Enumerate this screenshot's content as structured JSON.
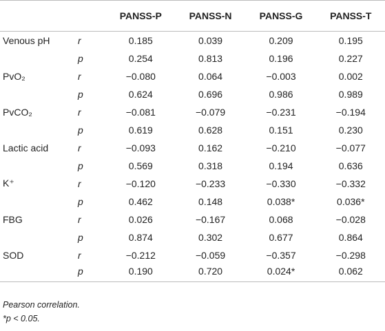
{
  "table": {
    "columns": [
      "PANSS-P",
      "PANSS-N",
      "PANSS-G",
      "PANSS-T"
    ],
    "groups": [
      {
        "label": "Venous pH",
        "rows": [
          {
            "stat": "r",
            "values": [
              "0.185",
              "0.039",
              "0.209",
              "0.195"
            ]
          },
          {
            "stat": "p",
            "values": [
              "0.254",
              "0.813",
              "0.196",
              "0.227"
            ]
          }
        ]
      },
      {
        "label": "PvO₂",
        "rows": [
          {
            "stat": "r",
            "values": [
              "−0.080",
              "0.064",
              "−0.003",
              "0.002"
            ]
          },
          {
            "stat": "p",
            "values": [
              "0.624",
              "0.696",
              "0.986",
              "0.989"
            ]
          }
        ]
      },
      {
        "label": "PvCO₂",
        "rows": [
          {
            "stat": "r",
            "values": [
              "−0.081",
              "−0.079",
              "−0.231",
              "−0.194"
            ]
          },
          {
            "stat": "p",
            "values": [
              "0.619",
              "0.628",
              "0.151",
              "0.230"
            ]
          }
        ]
      },
      {
        "label": "Lactic acid",
        "rows": [
          {
            "stat": "r",
            "values": [
              "−0.093",
              "0.162",
              "−0.210",
              "−0.077"
            ]
          },
          {
            "stat": "p",
            "values": [
              "0.569",
              "0.318",
              "0.194",
              "0.636"
            ]
          }
        ]
      },
      {
        "label": "K⁺",
        "rows": [
          {
            "stat": "r",
            "values": [
              "−0.120",
              "−0.233",
              "−0.330",
              "−0.332"
            ]
          },
          {
            "stat": "p",
            "values": [
              "0.462",
              "0.148",
              "0.038*",
              "0.036*"
            ]
          }
        ]
      },
      {
        "label": "FBG",
        "rows": [
          {
            "stat": "r",
            "values": [
              "0.026",
              "−0.167",
              "0.068",
              "−0.028"
            ]
          },
          {
            "stat": "p",
            "values": [
              "0.874",
              "0.302",
              "0.677",
              "0.864"
            ]
          }
        ]
      },
      {
        "label": "SOD",
        "rows": [
          {
            "stat": "r",
            "values": [
              "−0.212",
              "−0.059",
              "−0.357",
              "−0.298"
            ]
          },
          {
            "stat": "p",
            "values": [
              "0.190",
              "0.720",
              "0.024*",
              "0.062"
            ]
          }
        ]
      }
    ]
  },
  "footnotes": [
    "Pearson correlation.",
    "*p < 0.05."
  ]
}
